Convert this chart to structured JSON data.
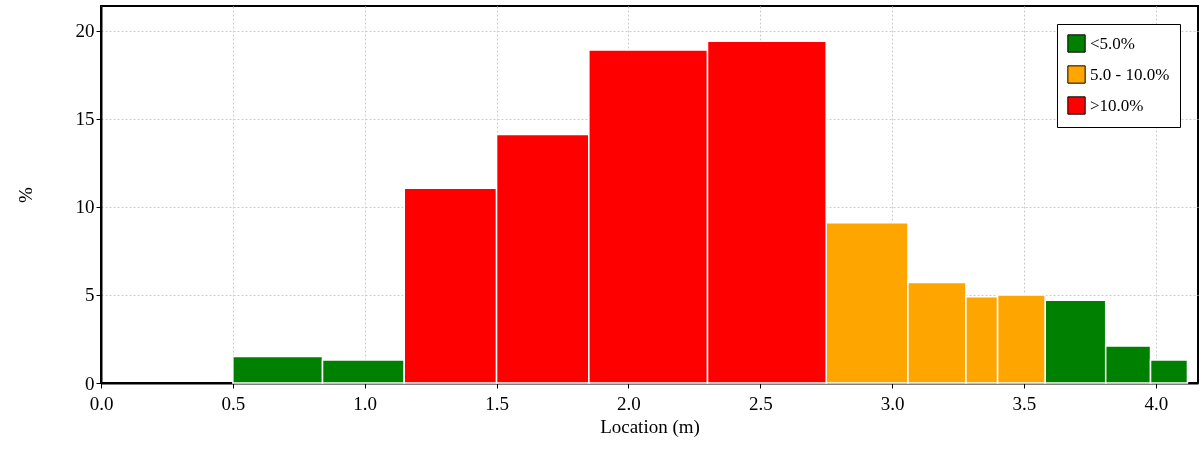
{
  "chart_data": {
    "type": "histogram",
    "xlabel": "Location (m)",
    "ylabel": "%",
    "bins": [
      0.5,
      0.84,
      1.15,
      1.5,
      1.85,
      2.3,
      2.75,
      3.06,
      3.28,
      3.4,
      3.58,
      3.81,
      3.98,
      4.12
    ],
    "series": [
      {
        "name": "<5.0%",
        "color": "#008000",
        "values": [
          1.5,
          1.3,
          null,
          null,
          null,
          null,
          null,
          null,
          null,
          null,
          4.7,
          2.1,
          1.3
        ]
      },
      {
        "name": "5.0 - 10.0%",
        "color": "#ffa500",
        "values": [
          null,
          null,
          null,
          null,
          null,
          null,
          9.1,
          5.7,
          4.9,
          5.0,
          null,
          null,
          null
        ]
      },
      {
        "name": ">10.0%",
        "color": "#ff0000",
        "values": [
          null,
          null,
          11.05,
          14.1,
          18.9,
          19.4,
          null,
          null,
          null,
          null,
          null,
          null,
          null
        ]
      }
    ],
    "xlim": [
      0,
      4.16
    ],
    "ylim": [
      0,
      21.4
    ],
    "xticks": [
      {
        "value": 0,
        "label": "0.0"
      },
      0.5,
      {
        "value": 1,
        "label": "1.0"
      },
      1.5,
      {
        "value": 2,
        "label": "2.0"
      },
      2.5,
      {
        "value": 3,
        "label": "3.0"
      },
      3.5,
      {
        "value": 4,
        "label": "4.0"
      }
    ],
    "yticks": [
      0,
      5,
      10,
      15,
      20
    ],
    "grid": true,
    "legend": "top right"
  }
}
